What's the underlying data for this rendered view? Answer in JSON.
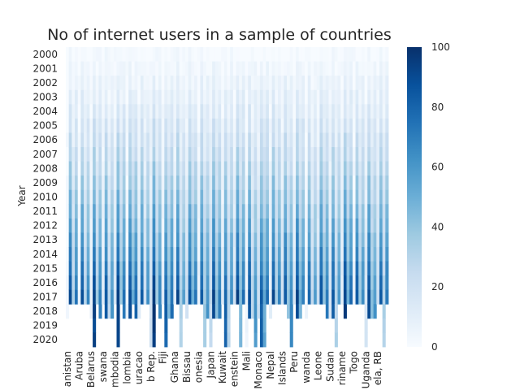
{
  "chart_data": {
    "type": "heatmap",
    "title": "No of internet users in a sample of countries",
    "ylabel": "Year",
    "xlabel": "",
    "years": [
      "2000",
      "2001",
      "2002",
      "2003",
      "2004",
      "2005",
      "2006",
      "2007",
      "2008",
      "2009",
      "2010",
      "2011",
      "2012",
      "2013",
      "2014",
      "2015",
      "2016",
      "2017",
      "2018",
      "2019",
      "2020"
    ],
    "x_tick_labels": [
      "anistan",
      "Aruba",
      "Belarus",
      "swana",
      "mbodia",
      "lombia",
      "uracao",
      "b Rep.",
      "Fiji",
      "Ghana",
      "Bissau",
      "onesia",
      "Japan",
      "Kuwait",
      "enstein",
      "Mali",
      "Monaco",
      "Nepal",
      "Islands",
      "Peru",
      "wanda",
      "Leone",
      "Sudan",
      "riname",
      "Togo",
      "Uganda",
      "ela, RB"
    ],
    "colorbar": {
      "min": 0,
      "max": 100,
      "ticks": [
        0,
        20,
        40,
        60,
        80,
        100
      ]
    },
    "colormap": [
      "#f7fbff",
      "#deebf7",
      "#c6dbef",
      "#9ecae1",
      "#6baed6",
      "#4292c6",
      "#2171b5",
      "#08519c",
      "#08306b"
    ],
    "num_countries": 108,
    "country_profile": [
      2,
      90,
      30,
      72,
      4,
      86,
      28,
      66,
      8,
      92,
      34,
      70,
      12,
      84,
      26,
      60,
      18,
      94,
      40,
      74,
      6,
      88,
      50,
      78,
      14,
      82,
      24,
      64,
      20,
      96,
      38,
      68,
      10,
      80,
      44,
      76,
      16,
      90,
      32,
      58,
      22,
      86,
      48,
      72,
      8,
      84,
      36,
      62,
      26,
      92,
      42,
      70,
      12,
      80,
      30,
      66,
      18,
      94,
      46,
      74,
      6,
      88,
      28,
      60,
      24,
      82,
      52,
      76,
      10,
      90,
      34,
      68,
      20,
      86,
      40,
      64,
      14,
      92,
      48,
      72,
      4,
      80,
      26,
      58,
      22,
      88,
      44,
      70,
      16,
      84,
      30,
      62,
      12,
      94,
      50,
      78,
      8,
      86,
      36,
      66,
      18,
      90,
      42,
      60,
      24,
      82,
      32,
      74
    ],
    "note_missing": "2018-2020 values absent for many countries (white cells)"
  }
}
